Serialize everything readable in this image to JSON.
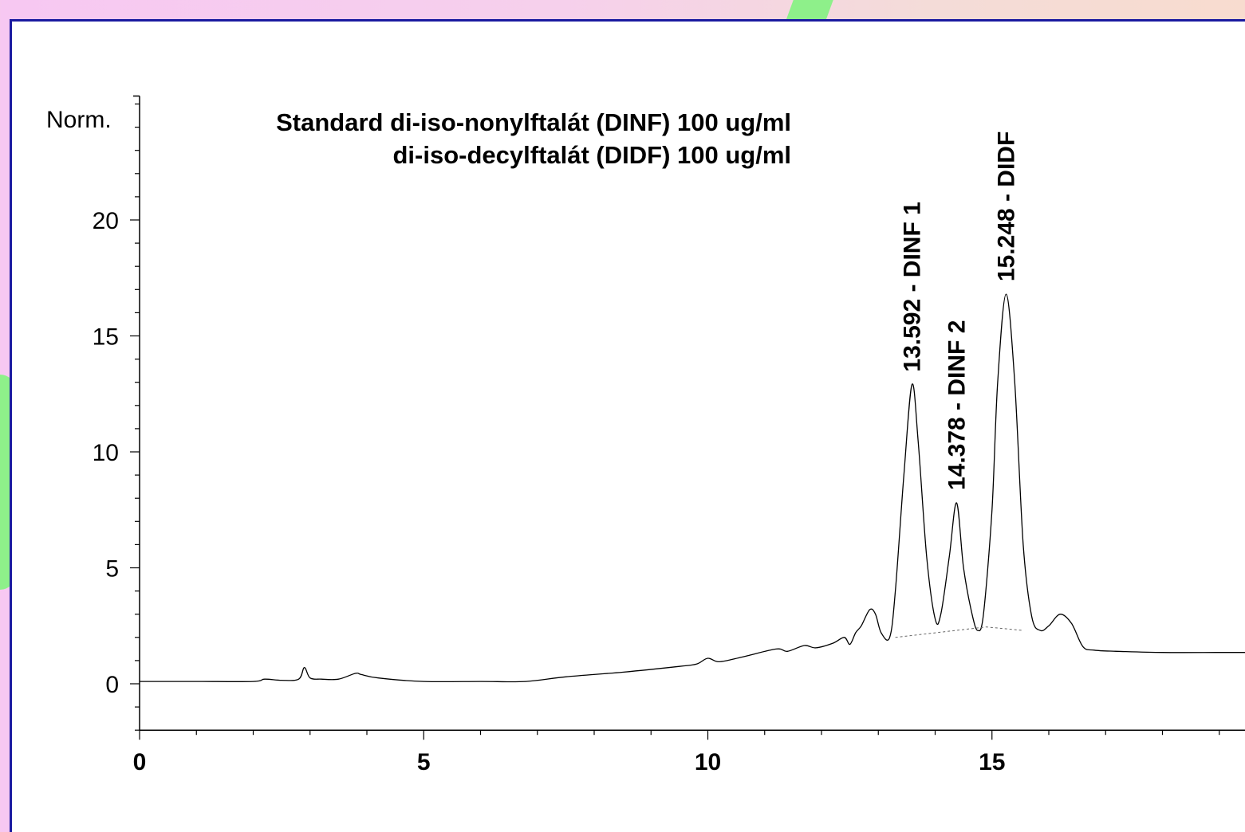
{
  "chart_data": {
    "type": "line",
    "title_lines": [
      "Standard di-iso-nonylftalát (DINF) 100 ug/ml",
      "di-iso-decylftalát (DIDF) 100 ug/ml"
    ],
    "ylabel": "Norm.",
    "xlabel": "",
    "xlim": [
      0,
      19.5
    ],
    "ylim": [
      -2,
      25
    ],
    "x_ticks": [
      0,
      5,
      10,
      15
    ],
    "x_tick_labels": [
      "0",
      "5",
      "10",
      "15"
    ],
    "y_ticks": [
      0,
      5,
      10,
      15,
      20
    ],
    "y_tick_labels": [
      "0",
      "5",
      "10",
      "15",
      "20"
    ],
    "grid": false,
    "series": [
      {
        "x": [
          0,
          1,
          2,
          2.2,
          2.5,
          2.8,
          2.9,
          3.0,
          3.2,
          3.5,
          3.8,
          3.9,
          4.2,
          5,
          6,
          6.8,
          7.5,
          8.5,
          9.5,
          9.8,
          10.0,
          10.2,
          10.6,
          11.2,
          11.4,
          11.7,
          11.9,
          12.2,
          12.4,
          12.5,
          12.6,
          12.7,
          12.85,
          12.95,
          13.05,
          13.2,
          13.3,
          13.45,
          13.592,
          13.7,
          13.85,
          14.0,
          14.1,
          14.25,
          14.378,
          14.5,
          14.65,
          14.75,
          14.85,
          15.0,
          15.1,
          15.248,
          15.4,
          15.55,
          15.7,
          15.85,
          16.0,
          16.2,
          16.4,
          16.6,
          16.8,
          17.2,
          18,
          19,
          19.5
        ],
        "y": [
          0.1,
          0.1,
          0.1,
          0.2,
          0.15,
          0.2,
          0.7,
          0.25,
          0.2,
          0.2,
          0.45,
          0.4,
          0.25,
          0.1,
          0.1,
          0.1,
          0.3,
          0.5,
          0.75,
          0.85,
          1.1,
          0.95,
          1.15,
          1.5,
          1.4,
          1.65,
          1.55,
          1.75,
          2.0,
          1.7,
          2.2,
          2.5,
          3.2,
          3.0,
          2.2,
          2.0,
          4.0,
          9.0,
          12.9,
          10.5,
          5.5,
          2.8,
          3.0,
          5.5,
          7.8,
          5.0,
          3.0,
          2.3,
          3.0,
          7.5,
          13.0,
          16.8,
          13.0,
          6.0,
          2.9,
          2.3,
          2.5,
          3.0,
          2.6,
          1.6,
          1.45,
          1.4,
          1.35,
          1.35,
          1.35
        ]
      }
    ],
    "peaks": [
      {
        "rt": 13.592,
        "label": "13.592 -  DINF 1",
        "height": 12.9
      },
      {
        "rt": 14.378,
        "label": "14.378 -  DINF 2",
        "height": 7.8
      },
      {
        "rt": 15.248,
        "label": "15.248 -  DIDF",
        "height": 16.8
      }
    ],
    "baseline": {
      "x": [
        13.3,
        14.9,
        15.55
      ],
      "y": [
        2.0,
        2.45,
        2.3
      ]
    }
  }
}
